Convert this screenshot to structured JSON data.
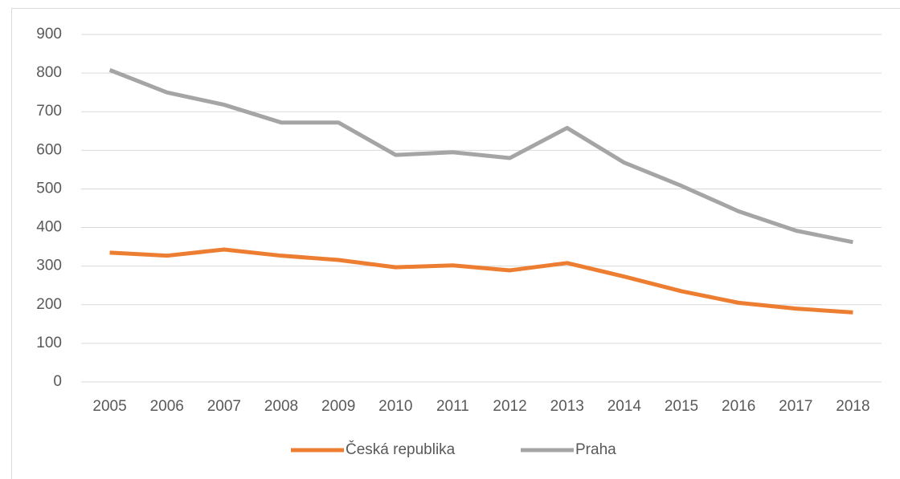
{
  "chart_data": {
    "type": "line",
    "categories": [
      "2005",
      "2006",
      "2007",
      "2008",
      "2009",
      "2010",
      "2011",
      "2012",
      "2013",
      "2014",
      "2015",
      "2016",
      "2017",
      "2018"
    ],
    "series": [
      {
        "name": "Česká republika",
        "color": "#ed7d31",
        "values": [
          335,
          327,
          343,
          327,
          316,
          297,
          302,
          289,
          308,
          273,
          235,
          205,
          190,
          180
        ]
      },
      {
        "name": "Praha",
        "color": "#a5a5a5",
        "values": [
          808,
          750,
          718,
          672,
          672,
          588,
          595,
          580,
          658,
          568,
          508,
          442,
          392,
          362
        ]
      }
    ],
    "ylim": [
      0,
      900
    ],
    "yticks": [
      0,
      100,
      200,
      300,
      400,
      500,
      600,
      700,
      800,
      900
    ],
    "grid": true,
    "legend": "bottom"
  }
}
